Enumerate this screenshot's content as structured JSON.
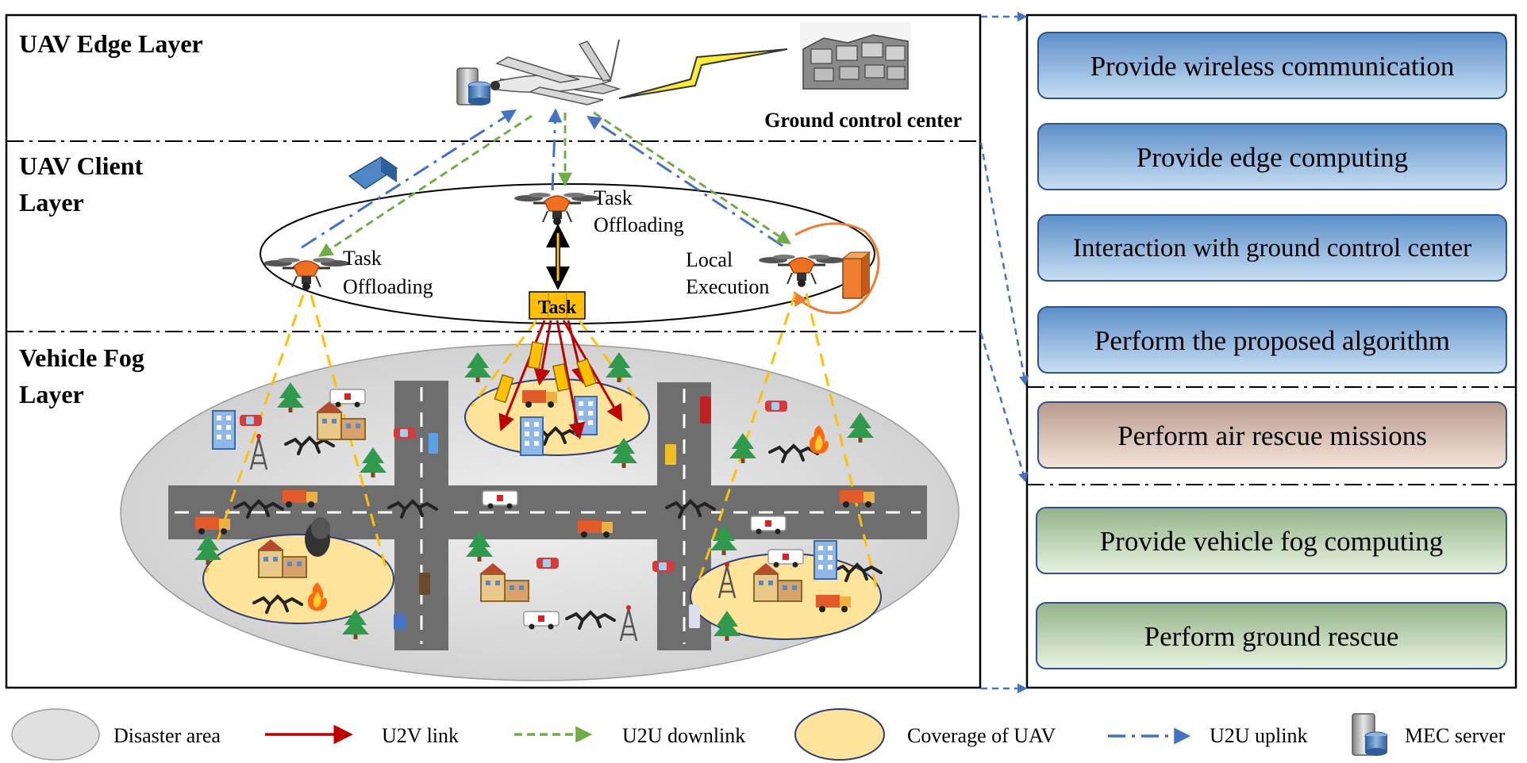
{
  "layers": {
    "edge": "UAV Edge Layer",
    "client_line1": "UAV Client",
    "client_line2": "Layer",
    "fog_line1": "Vehicle Fog",
    "fog_line2": "Layer"
  },
  "labels": {
    "ground_control": "Ground control center",
    "task_off_left_1": "Task",
    "task_off_left_2": "Offloading",
    "task_off_mid_1": "Task",
    "task_off_mid_2": "Offloading",
    "local_1": "Local",
    "local_2": "Execution",
    "task_box": "Task"
  },
  "functions": {
    "edge": [
      "Provide wireless communication",
      "Provide edge computing",
      "Interaction with ground control center",
      "Perform the proposed algorithm"
    ],
    "client": [
      "Perform air rescue missions"
    ],
    "fog": [
      "Provide vehicle fog computing",
      "Perform ground rescue"
    ]
  },
  "legend": {
    "disaster": "Disaster area",
    "u2v": "U2V  link",
    "u2u_down": "U2U  downlink",
    "coverage": "Coverage of UAV",
    "u2u_up": "U2U  uplink",
    "mec": "MEC server"
  },
  "colors": {
    "u2v": "#c00000",
    "u2u_down": "#70ad47",
    "u2u_up": "#4472c4",
    "coverage": "#fde49a",
    "disaster": "#e0e0e0",
    "edge_box": "#9dc3e6",
    "client_box": "#ebcfc0",
    "fog_box": "#d5e8c8"
  }
}
